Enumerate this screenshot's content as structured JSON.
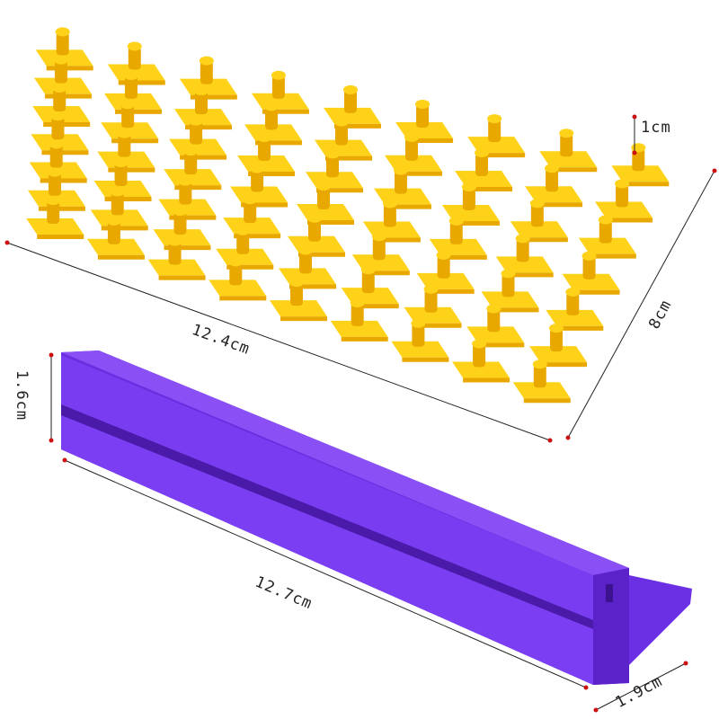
{
  "colors": {
    "stamp_yellow": "#ffd21a",
    "stamp_shadow": "#e8a800",
    "bar_purple": "#7a3cf0",
    "bar_dark": "#5a22c8",
    "dimension_line": "#222222",
    "dimension_dot": "#cc1111"
  },
  "dimensions": {
    "stamp_height": "1cm",
    "stamp_grid_width": "8cm",
    "stamp_grid_length": "12.4cm",
    "bar_height": "1.6cm",
    "bar_length": "12.7cm",
    "bar_width": "1.9cm"
  }
}
